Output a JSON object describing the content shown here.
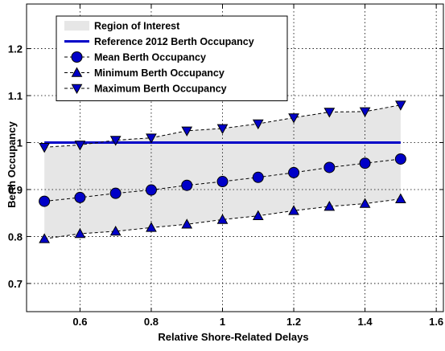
{
  "chart_data": {
    "type": "line",
    "title": "",
    "xlabel": "Relative Shore-Related Delays",
    "ylabel": "Berth Occupancy",
    "xlim": [
      0.45,
      1.62
    ],
    "ylim": [
      0.64,
      1.295
    ],
    "xticks": [
      0.6,
      0.8,
      1,
      1.2,
      1.4,
      1.6
    ],
    "xtick_labels": [
      "0.6",
      "0.8",
      "1",
      "1.2",
      "1.4",
      "1.6"
    ],
    "yticks": [
      0.7,
      0.8,
      0.9,
      1,
      1.1,
      1.2
    ],
    "ytick_labels": [
      "0.7",
      "0.8",
      "0.9",
      "1",
      "1.1",
      "1.2"
    ],
    "grid": true,
    "legend_position": "top-left",
    "x": [
      0.5,
      0.6,
      0.7,
      0.8,
      0.9,
      1.0,
      1.1,
      1.2,
      1.3,
      1.4,
      1.5
    ],
    "region": {
      "name": "Region of Interest",
      "color": "#e6e6e6",
      "lower": [
        0.795,
        0.806,
        0.811,
        0.819,
        0.826,
        0.836,
        0.844,
        0.855,
        0.864,
        0.87,
        0.88
      ],
      "upper": [
        0.99,
        0.995,
        1.005,
        1.01,
        1.025,
        1.03,
        1.04,
        1.053,
        1.065,
        1.066,
        1.08
      ]
    },
    "reference": {
      "name": "Reference 2012 Berth Occupancy",
      "value": 1.0,
      "x_range": [
        0.5,
        1.5
      ],
      "color": "#0000c8"
    },
    "series": [
      {
        "name": "Mean Berth Occupancy",
        "marker": "circle",
        "color": "#0000c8",
        "values": [
          0.875,
          0.883,
          0.892,
          0.899,
          0.909,
          0.917,
          0.926,
          0.936,
          0.947,
          0.956,
          0.965
        ]
      },
      {
        "name": "Minimum Berth Occupancy",
        "marker": "triangle-up",
        "color": "#0000c8",
        "values": [
          0.795,
          0.806,
          0.811,
          0.819,
          0.826,
          0.836,
          0.844,
          0.855,
          0.864,
          0.87,
          0.88
        ]
      },
      {
        "name": "Maximum Berth Occupancy",
        "marker": "triangle-down",
        "color": "#0000c8",
        "values": [
          0.99,
          0.995,
          1.005,
          1.01,
          1.025,
          1.03,
          1.04,
          1.053,
          1.065,
          1.066,
          1.08
        ]
      }
    ],
    "legend": [
      {
        "label": "Region of Interest",
        "kind": "patch"
      },
      {
        "label": "Reference 2012 Berth Occupancy",
        "kind": "solid-line"
      },
      {
        "label": "Mean Berth Occupancy",
        "kind": "circle"
      },
      {
        "label": "Minimum Berth Occupancy",
        "kind": "triangle-up"
      },
      {
        "label": "Maximum Berth Occupancy",
        "kind": "triangle-down"
      }
    ]
  }
}
